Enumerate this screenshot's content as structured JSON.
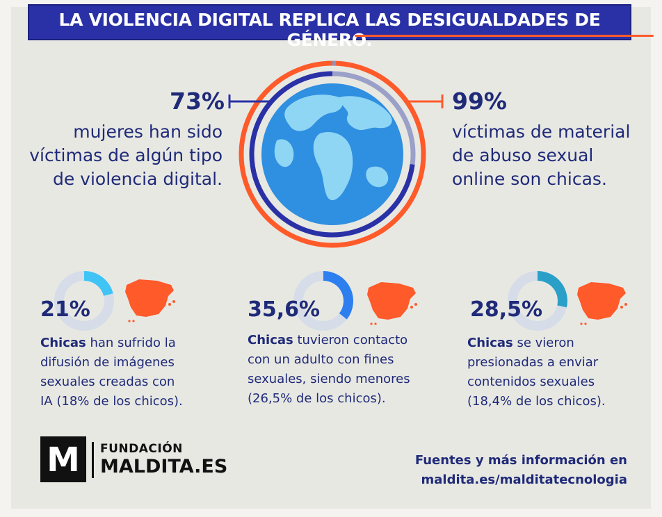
{
  "banner": {
    "title": "LA VIOLENCIA DIGITAL REPLICA LAS DESIGUALDADES DE GÉNERO."
  },
  "stat_left": {
    "value": "73%",
    "lines": [
      "mujeres han sido",
      "víctimas de algún tipo",
      "de violencia digital."
    ]
  },
  "stat_right": {
    "value": "99%",
    "lines": [
      "víctimas de material",
      "de abuso sexual",
      "online son chicas."
    ]
  },
  "stats_small": [
    {
      "value": "21%",
      "fraction": 0.21,
      "bold": "Chicas",
      "lines": [
        " han sufrido la",
        "difusión de imágenes",
        "sexuales creadas con",
        "IA (18% de los chicos)."
      ]
    },
    {
      "value": "35,6%",
      "fraction": 0.356,
      "bold": "Chicas",
      "lines": [
        " tuvieron contacto",
        "con un adulto con fines",
        "sexuales, siendo menores",
        "(26,5% de los chicos)."
      ]
    },
    {
      "value": "28,5%",
      "fraction": 0.285,
      "bold": "Chicas",
      "lines": [
        " se vieron",
        "presionadas a enviar",
        "contenidos sexuales",
        "(18,4% de los chicos)."
      ]
    }
  ],
  "logo": {
    "mark": "M",
    "line1": "FUNDACIÓN",
    "line2": "MALDITA.ES"
  },
  "footer": {
    "line1": "Fuentes y más información en",
    "line2": "maldita.es/malditatecnologia"
  },
  "colors": {
    "navy": "#1f2a78",
    "banner": "#2a31a6",
    "orange": "#ff5a2a",
    "globe_ocean": "#2f8fe0",
    "globe_land": "#8fd6f5",
    "donut_track": "#d6dde8",
    "donut_1": "#3fc4f5",
    "donut_2": "#2d7ff0",
    "donut_3": "#2aa0c8"
  },
  "icons": {
    "globe": "globe-icon",
    "map": "spain-map-icon"
  }
}
